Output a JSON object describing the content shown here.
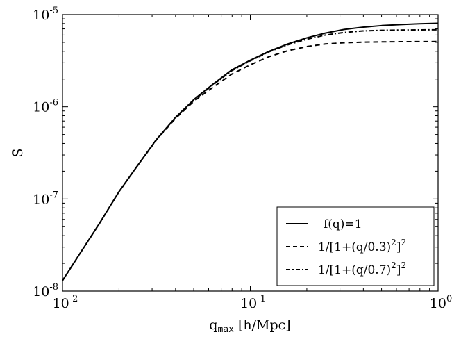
{
  "chart_data": {
    "type": "line",
    "xscale": "log",
    "yscale": "log",
    "xlim": [
      0.01,
      1
    ],
    "ylim": [
      1e-08,
      1e-05
    ],
    "xticks": [
      {
        "value": 0.01,
        "base": "10",
        "exp": "-2"
      },
      {
        "value": 0.1,
        "base": "10",
        "exp": "-1"
      },
      {
        "value": 1,
        "base": "10",
        "exp": "0"
      }
    ],
    "yticks": [
      {
        "value": 1e-08,
        "base": "10",
        "exp": "-8"
      },
      {
        "value": 1e-07,
        "base": "10",
        "exp": "-7"
      },
      {
        "value": 1e-06,
        "base": "10",
        "exp": "-6"
      },
      {
        "value": 1e-05,
        "base": "10",
        "exp": "-5"
      }
    ],
    "xlabel": {
      "main": "q",
      "sub": "max",
      "unit": "[h/Mpc]"
    },
    "ylabel": "S",
    "legend_position": "lower-right",
    "grid": false,
    "series": [
      {
        "name": "f(q)=1",
        "style": "solid",
        "x": [
          0.01,
          0.0126,
          0.0158,
          0.02,
          0.0251,
          0.0316,
          0.0398,
          0.0501,
          0.0631,
          0.0794,
          0.1,
          0.126,
          0.158,
          0.2,
          0.251,
          0.316,
          0.398,
          0.501,
          0.631,
          0.794,
          1.0
        ],
        "y": [
          1.3e-08,
          2.7e-08,
          5.5e-08,
          1.2e-07,
          2.3e-07,
          4.4e-07,
          7.6e-07,
          1.2e-06,
          1.75e-06,
          2.5e-06,
          3.2e-06,
          4e-06,
          4.8e-06,
          5.6e-06,
          6.3e-06,
          6.9e-06,
          7.3e-06,
          7.6e-06,
          7.8e-06,
          7.95e-06,
          8.05e-06
        ]
      },
      {
        "name": "1/[1+(q/0.3)²]²",
        "style": "dashed",
        "x": [
          0.01,
          0.0126,
          0.0158,
          0.02,
          0.0251,
          0.0316,
          0.0398,
          0.0501,
          0.0631,
          0.0794,
          0.1,
          0.126,
          0.158,
          0.2,
          0.251,
          0.316,
          0.398,
          0.501,
          0.631,
          0.794,
          1.0
        ],
        "y": [
          1.3e-08,
          2.7e-08,
          5.5e-08,
          1.2e-07,
          2.3e-07,
          4.35e-07,
          7.4e-07,
          1.15e-06,
          1.62e-06,
          2.25e-06,
          2.85e-06,
          3.5e-06,
          4.05e-06,
          4.5e-06,
          4.8e-06,
          4.95e-06,
          5.02e-06,
          5.06e-06,
          5.08e-06,
          5.09e-06,
          5.1e-06
        ]
      },
      {
        "name": "1/[1+(q/0.7)²]²",
        "style": "dashdot",
        "x": [
          0.01,
          0.0126,
          0.0158,
          0.02,
          0.0251,
          0.0316,
          0.0398,
          0.0501,
          0.0631,
          0.0794,
          0.1,
          0.126,
          0.158,
          0.2,
          0.251,
          0.316,
          0.398,
          0.501,
          0.631,
          0.794,
          1.0
        ],
        "y": [
          1.3e-08,
          2.7e-08,
          5.5e-08,
          1.2e-07,
          2.3e-07,
          4.4e-07,
          7.55e-07,
          1.18e-06,
          1.72e-06,
          2.45e-06,
          3.15e-06,
          3.95e-06,
          4.7e-06,
          5.4e-06,
          6e-06,
          6.4e-06,
          6.65e-06,
          6.75e-06,
          6.8e-06,
          6.83e-06,
          6.85e-06
        ]
      }
    ],
    "legend": [
      {
        "prefix": "f(q)",
        "rest": "=1"
      },
      {
        "prefix": "1/[1+(q/0.3)",
        "exp": "2",
        "mid": "]",
        "exp2": "2"
      },
      {
        "prefix": "1/[1+(q/0.7)",
        "exp": "2",
        "mid": "]",
        "exp2": "2"
      }
    ]
  }
}
